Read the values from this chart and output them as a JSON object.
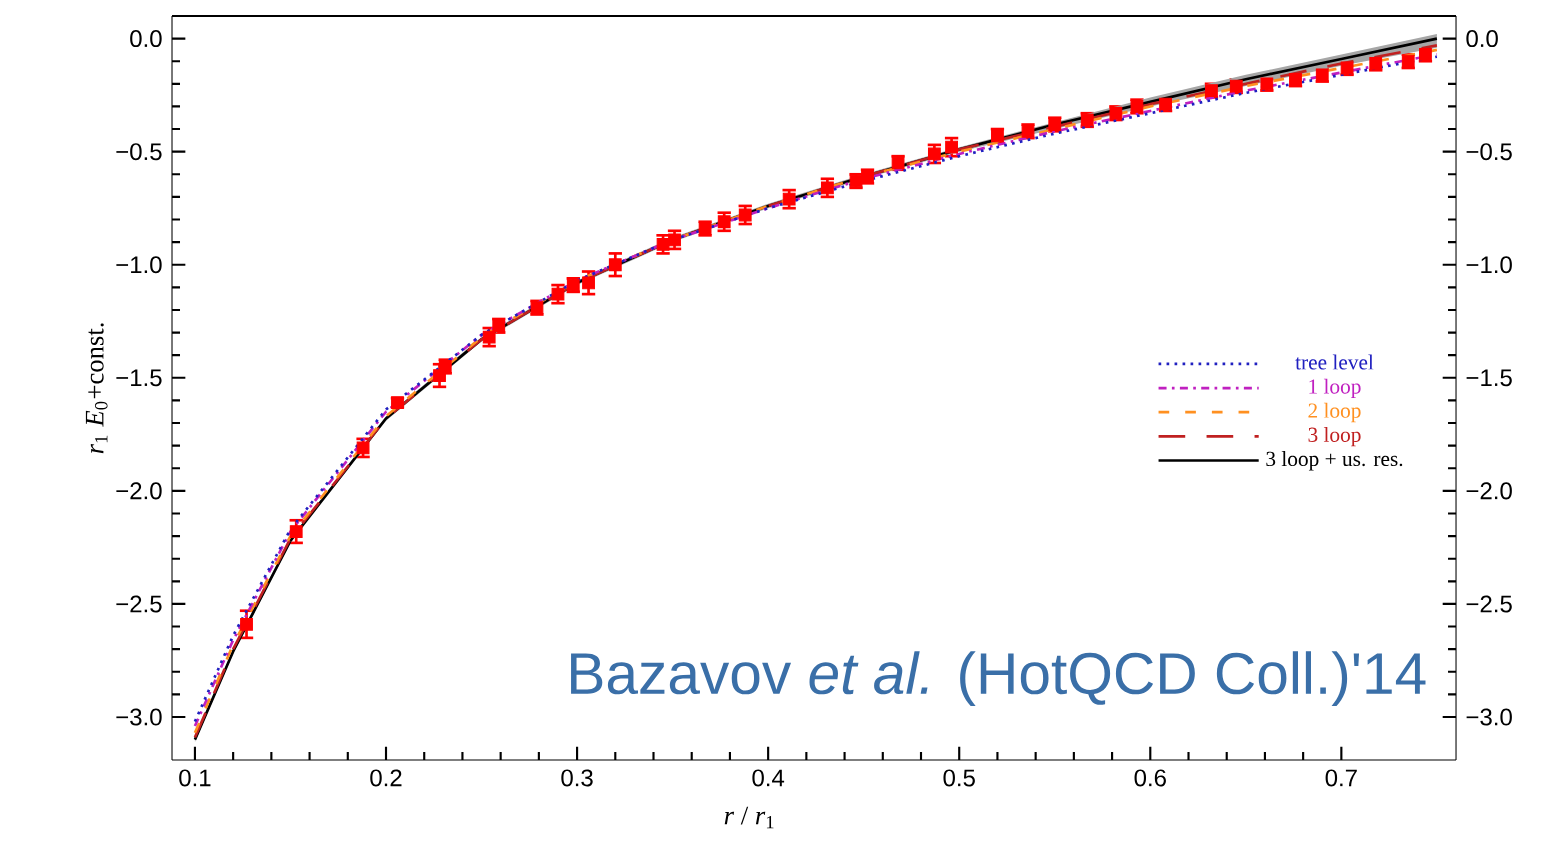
{
  "chart_data": {
    "type": "line",
    "xlabel": "*r* / *r*$_{1}$",
    "ylabel": "*r*$_{1}$ *E*$_{0}$+const.",
    "xlim": [
      0.088,
      0.76
    ],
    "ylim": [
      -3.19,
      0.1
    ],
    "y2lim": [
      -3.19,
      0.1
    ],
    "xticks": [
      0.1,
      0.2,
      0.3,
      0.4,
      0.5,
      0.6,
      0.7
    ],
    "yticks": [
      {
        "value": -3.0,
        "label": "−3.0"
      },
      {
        "value": -2.5,
        "label": "−2.5"
      },
      {
        "value": -2.0,
        "label": "−2.0"
      },
      {
        "value": -1.5,
        "label": "−1.5"
      },
      {
        "value": -1.0,
        "label": "−1.0"
      },
      {
        "value": -0.5,
        "label": "−0.5"
      },
      {
        "value": 0.0,
        "label": "0.0"
      }
    ],
    "y2ticks": [
      {
        "value": -3.0,
        "label": "−3.0"
      },
      {
        "value": -2.5,
        "label": "−2.5"
      },
      {
        "value": -2.0,
        "label": "−2.0"
      },
      {
        "value": -1.5,
        "label": "−1.5"
      },
      {
        "value": -1.0,
        "label": "−1.0"
      },
      {
        "value": -0.5,
        "label": "−0.5"
      },
      {
        "value": 0.0,
        "label": "0.0"
      }
    ],
    "legend": "right",
    "grid": false,
    "series": [
      {
        "name": "tree level",
        "color": "#2020c0",
        "line_style": "dotted",
        "x": [
          0.1,
          0.12,
          0.15,
          0.2,
          0.25,
          0.3,
          0.35,
          0.4,
          0.45,
          0.5,
          0.55,
          0.6,
          0.65,
          0.7,
          0.75
        ],
        "values": [
          -3.02,
          -2.64,
          -2.17,
          -1.64,
          -1.31,
          -1.07,
          -0.89,
          -0.75,
          -0.63,
          -0.52,
          -0.42,
          -0.33,
          -0.24,
          -0.16,
          -0.08
        ]
      },
      {
        "name": "1 loop",
        "color": "#c020c0",
        "line_style": "dashdotted",
        "x": [
          0.1,
          0.12,
          0.15,
          0.2,
          0.25,
          0.3,
          0.35,
          0.4,
          0.45,
          0.5,
          0.55,
          0.6,
          0.65,
          0.7,
          0.75
        ],
        "values": [
          -3.04,
          -2.66,
          -2.18,
          -1.65,
          -1.31,
          -1.07,
          -0.89,
          -0.75,
          -0.62,
          -0.51,
          -0.41,
          -0.32,
          -0.23,
          -0.15,
          -0.07
        ]
      },
      {
        "name": "2 loop",
        "color": "#ff9020",
        "line_style": "dashed",
        "x": [
          0.1,
          0.12,
          0.15,
          0.2,
          0.25,
          0.3,
          0.35,
          0.4,
          0.45,
          0.5,
          0.55,
          0.6,
          0.65,
          0.7,
          0.75
        ],
        "values": [
          -3.07,
          -2.68,
          -2.2,
          -1.67,
          -1.32,
          -1.07,
          -0.89,
          -0.74,
          -0.61,
          -0.5,
          -0.4,
          -0.3,
          -0.21,
          -0.13,
          -0.05
        ]
      },
      {
        "name": "3 loop",
        "color": "#c02020",
        "line_style": "longdashed",
        "x": [
          0.1,
          0.12,
          0.15,
          0.2,
          0.25,
          0.3,
          0.35,
          0.4,
          0.45,
          0.5,
          0.55,
          0.6,
          0.65,
          0.7,
          0.75
        ],
        "values": [
          -3.09,
          -2.7,
          -2.21,
          -1.68,
          -1.33,
          -1.08,
          -0.89,
          -0.74,
          -0.61,
          -0.49,
          -0.39,
          -0.29,
          -0.2,
          -0.11,
          -0.03
        ]
      },
      {
        "name": "3 loop + us. res.",
        "color": "#000000",
        "line_style": "solid",
        "x": [
          0.1,
          0.12,
          0.15,
          0.2,
          0.25,
          0.3,
          0.35,
          0.4,
          0.45,
          0.5,
          0.55,
          0.6,
          0.65,
          0.7,
          0.75
        ],
        "values": [
          -3.1,
          -2.71,
          -2.22,
          -1.68,
          -1.33,
          -1.08,
          -0.89,
          -0.74,
          -0.61,
          -0.49,
          -0.38,
          -0.28,
          -0.18,
          -0.09,
          0.0
        ],
        "lower": [
          -3.11,
          -2.72,
          -2.23,
          -1.69,
          -1.34,
          -1.09,
          -0.9,
          -0.75,
          -0.62,
          -0.5,
          -0.4,
          -0.3,
          -0.21,
          -0.12,
          -0.04
        ],
        "upper": [
          -3.09,
          -2.7,
          -2.21,
          -1.67,
          -1.32,
          -1.07,
          -0.88,
          -0.73,
          -0.6,
          -0.48,
          -0.37,
          -0.26,
          -0.16,
          -0.07,
          0.02
        ]
      },
      {
        "type": "scatter",
        "color": "#ff0000",
        "marker": "square",
        "x": [
          0.127,
          0.153,
          0.188,
          0.206,
          0.228,
          0.231,
          0.254,
          0.259,
          0.279,
          0.29,
          0.298,
          0.306,
          0.32,
          0.345,
          0.351,
          0.367,
          0.377,
          0.388,
          0.411,
          0.431,
          0.446,
          0.452,
          0.468,
          0.487,
          0.496,
          0.52,
          0.536,
          0.55,
          0.567,
          0.582,
          0.593,
          0.608,
          0.632,
          0.645,
          0.661,
          0.676,
          0.69,
          0.703,
          0.718,
          0.735,
          0.744
        ],
        "values": [
          -2.59,
          -2.18,
          -1.81,
          -1.61,
          -1.49,
          -1.45,
          -1.32,
          -1.27,
          -1.19,
          -1.13,
          -1.09,
          -1.08,
          -1.0,
          -0.91,
          -0.89,
          -0.84,
          -0.81,
          -0.78,
          -0.71,
          -0.66,
          -0.63,
          -0.61,
          -0.55,
          -0.51,
          -0.48,
          -0.43,
          -0.41,
          -0.38,
          -0.36,
          -0.33,
          -0.3,
          -0.29,
          -0.23,
          -0.21,
          -0.2,
          -0.18,
          -0.16,
          -0.13,
          -0.11,
          -0.1,
          -0.07
        ],
        "errors": [
          0.06,
          0.05,
          0.04,
          0.02,
          0.05,
          0.03,
          0.04,
          0.03,
          0.03,
          0.04,
          0.03,
          0.05,
          0.05,
          0.04,
          0.04,
          0.03,
          0.04,
          0.04,
          0.04,
          0.04,
          0.03,
          0.03,
          0.03,
          0.04,
          0.04,
          0.03,
          0.03,
          0.03,
          0.03,
          0.03,
          0.03,
          0.03,
          0.03,
          0.03,
          0.03,
          0.03,
          0.03,
          0.03,
          0.03,
          0.03,
          0.03
        ]
      }
    ],
    "annotations": [
      "Bazavov *et al.* (HotQCD Coll.)'14"
    ]
  }
}
